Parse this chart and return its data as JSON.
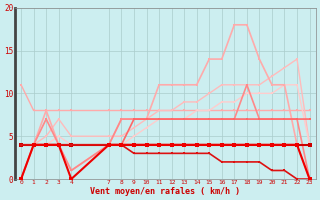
{
  "xlabel": "Vent moyen/en rafales ( km/h )",
  "x_ticks": [
    0,
    1,
    2,
    3,
    4,
    7,
    8,
    9,
    10,
    11,
    12,
    13,
    14,
    15,
    16,
    17,
    18,
    19,
    20,
    21,
    22,
    23
  ],
  "ylim": [
    0,
    20
  ],
  "yticks": [
    0,
    5,
    10,
    15,
    20
  ],
  "bg_color": "#cceef0",
  "grid_color": "#aacccc",
  "lines": [
    {
      "y": [
        11,
        8,
        8,
        8,
        8,
        8,
        8,
        8,
        8,
        8,
        8,
        8,
        8,
        8,
        8,
        8,
        8,
        8,
        8,
        8,
        8,
        8
      ],
      "color": "#ffaaaa",
      "lw": 1.0,
      "marker": "s",
      "ms": 2.0,
      "zorder": 2
    },
    {
      "y": [
        4,
        4,
        5,
        7,
        5,
        5,
        5,
        6,
        7,
        8,
        8,
        9,
        9,
        10,
        11,
        11,
        11,
        11,
        12,
        13,
        14,
        4
      ],
      "color": "#ffbbbb",
      "lw": 1.0,
      "marker": "s",
      "ms": 2.0,
      "zorder": 2
    },
    {
      "y": [
        4,
        4,
        4,
        5,
        4,
        4,
        4,
        5,
        6,
        7,
        7,
        7,
        8,
        8,
        9,
        9,
        10,
        10,
        10,
        11,
        11,
        4
      ],
      "color": "#ffcccc",
      "lw": 1.0,
      "marker": "s",
      "ms": 2.0,
      "zorder": 2
    },
    {
      "y": [
        0,
        4,
        8,
        4,
        1,
        4,
        7,
        7,
        7,
        11,
        11,
        11,
        11,
        14,
        14,
        18,
        18,
        14,
        11,
        11,
        4,
        0
      ],
      "color": "#ffaaaa",
      "lw": 1.2,
      "marker": "s",
      "ms": 2.0,
      "zorder": 3
    },
    {
      "y": [
        0,
        4,
        7,
        4,
        1,
        4,
        7,
        7,
        7,
        7,
        7,
        7,
        7,
        7,
        7,
        7,
        11,
        7,
        7,
        7,
        7,
        0
      ],
      "color": "#ff8888",
      "lw": 1.2,
      "marker": "s",
      "ms": 2.0,
      "zorder": 3
    },
    {
      "y": [
        4,
        4,
        4,
        4,
        4,
        4,
        4,
        7,
        7,
        7,
        7,
        7,
        7,
        7,
        7,
        7,
        7,
        7,
        7,
        7,
        7,
        7
      ],
      "color": "#ff6666",
      "lw": 1.2,
      "marker": "s",
      "ms": 2.0,
      "zorder": 3
    },
    {
      "y": [
        4,
        4,
        4,
        4,
        4,
        4,
        4,
        4,
        4,
        4,
        4,
        4,
        4,
        4,
        4,
        4,
        4,
        4,
        4,
        4,
        4,
        4
      ],
      "color": "#cc0000",
      "lw": 1.5,
      "marker": "s",
      "ms": 2.5,
      "zorder": 4
    },
    {
      "y": [
        4,
        4,
        4,
        4,
        4,
        4,
        4,
        3,
        3,
        3,
        3,
        3,
        3,
        3,
        2,
        2,
        2,
        2,
        1,
        1,
        0,
        0
      ],
      "color": "#dd1111",
      "lw": 1.2,
      "marker": "s",
      "ms": 2.0,
      "zorder": 4
    },
    {
      "y": [
        0,
        4,
        4,
        4,
        0,
        4,
        4,
        4,
        4,
        4,
        4,
        4,
        4,
        4,
        4,
        4,
        4,
        4,
        4,
        4,
        4,
        0
      ],
      "color": "#ee0000",
      "lw": 1.5,
      "marker": "s",
      "ms": 2.5,
      "zorder": 5
    }
  ]
}
